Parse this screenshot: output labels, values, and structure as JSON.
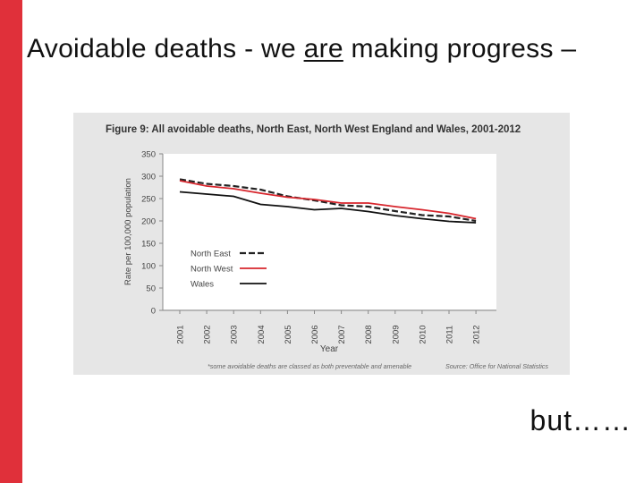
{
  "slide": {
    "title_part1": "Avoidable deaths - we ",
    "title_emphasis": "are",
    "title_part2": " making progress –",
    "footer_text": "but……",
    "accent_color": "#e0303a"
  },
  "chart_data": {
    "type": "line",
    "title": "Figure 9: All avoidable deaths, North East, North West England and Wales, 2001-2012",
    "xlabel": "Year",
    "ylabel": "Rate per 100,000 population",
    "ylim": [
      0,
      350
    ],
    "yticks": [
      0,
      50,
      100,
      150,
      200,
      250,
      300,
      350
    ],
    "x": [
      "2001",
      "2002",
      "2003",
      "2004",
      "2005",
      "2006",
      "2007",
      "2008",
      "2009",
      "2010",
      "2011",
      "2012"
    ],
    "series": [
      {
        "name": "North East",
        "style": "dashed",
        "color": "#222222",
        "values": [
          293,
          283,
          278,
          270,
          255,
          246,
          235,
          232,
          222,
          213,
          210,
          200
        ]
      },
      {
        "name": "North West",
        "style": "solid",
        "color": "#d7262d",
        "values": [
          290,
          278,
          272,
          262,
          253,
          248,
          240,
          240,
          232,
          225,
          217,
          205
        ]
      },
      {
        "name": "Wales",
        "style": "solid",
        "color": "#111111",
        "values": [
          265,
          260,
          255,
          237,
          232,
          225,
          228,
          221,
          212,
          205,
          199,
          196
        ]
      }
    ],
    "grid": false,
    "legend_position": "bottom-left",
    "footnote": "*some avoidable deaths are classed as both preventable and amenable",
    "source": "Source: Office for National Statistics"
  }
}
